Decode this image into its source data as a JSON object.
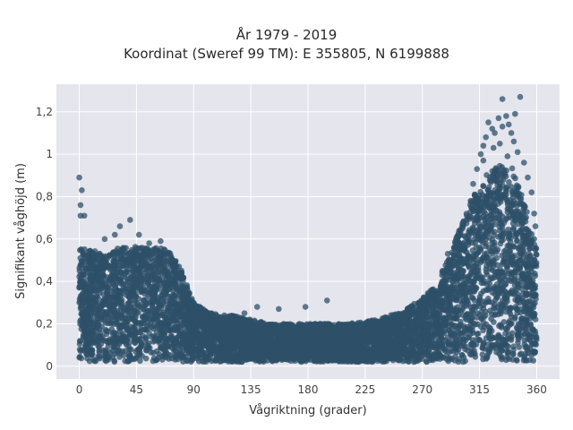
{
  "chart_data": {
    "type": "scatter",
    "title_line1": "År 1979 - 2019",
    "title_line2": "Koordinat (Sweref 99 TM): E 355805, N 6199888",
    "xlabel": "Vågriktning (grader)",
    "ylabel": "Signifikant våghöjd (m)",
    "xlim": [
      -18,
      378
    ],
    "ylim": [
      -0.06,
      1.33
    ],
    "x_ticks": [
      0,
      45,
      90,
      135,
      180,
      225,
      270,
      315,
      360
    ],
    "x_tick_labels": [
      "0",
      "45",
      "90",
      "135",
      "180",
      "225",
      "270",
      "315",
      "360"
    ],
    "y_ticks": [
      0,
      0.2,
      0.4,
      0.6,
      0.8,
      1.0,
      1.2
    ],
    "y_tick_labels": [
      "0",
      "0,2",
      "0,4",
      "0,6",
      "0,8",
      "1",
      "1,2"
    ],
    "grid": true,
    "marker_color": "#2e5068",
    "background_color": "#e5e5ee",
    "envelope": {
      "direction": [
        0,
        10,
        20,
        30,
        40,
        50,
        60,
        70,
        80,
        90,
        100,
        110,
        120,
        135,
        150,
        165,
        180,
        195,
        210,
        225,
        240,
        255,
        270,
        280,
        290,
        300,
        310,
        320,
        330,
        340,
        350,
        360
      ],
      "height_min": [
        0.02,
        0.02,
        0.02,
        0.02,
        0.02,
        0.02,
        0.02,
        0.02,
        0.02,
        0.02,
        0.02,
        0.02,
        0.02,
        0.02,
        0.02,
        0.02,
        0.02,
        0.02,
        0.02,
        0.02,
        0.02,
        0.02,
        0.02,
        0.02,
        0.02,
        0.02,
        0.02,
        0.02,
        0.02,
        0.02,
        0.02,
        0.02
      ],
      "height_max": [
        0.56,
        0.55,
        0.52,
        0.56,
        0.57,
        0.56,
        0.56,
        0.55,
        0.46,
        0.3,
        0.26,
        0.24,
        0.24,
        0.22,
        0.2,
        0.2,
        0.2,
        0.2,
        0.2,
        0.21,
        0.23,
        0.26,
        0.32,
        0.38,
        0.5,
        0.66,
        0.8,
        0.9,
        0.95,
        0.95,
        0.78,
        0.55
      ]
    },
    "outliers": [
      {
        "x": 0,
        "y": 0.89
      },
      {
        "x": 2,
        "y": 0.83
      },
      {
        "x": 1,
        "y": 0.76
      },
      {
        "x": 1,
        "y": 0.71
      },
      {
        "x": 4,
        "y": 0.71
      },
      {
        "x": 32,
        "y": 0.66
      },
      {
        "x": 40,
        "y": 0.69
      },
      {
        "x": 28,
        "y": 0.62
      },
      {
        "x": 47,
        "y": 0.62
      },
      {
        "x": 20,
        "y": 0.6
      },
      {
        "x": 64,
        "y": 0.59
      },
      {
        "x": 55,
        "y": 0.58
      },
      {
        "x": 140,
        "y": 0.28
      },
      {
        "x": 157,
        "y": 0.27
      },
      {
        "x": 178,
        "y": 0.28
      },
      {
        "x": 195,
        "y": 0.31
      },
      {
        "x": 130,
        "y": 0.25
      },
      {
        "x": 215,
        "y": 0.2
      },
      {
        "x": 290,
        "y": 0.53
      },
      {
        "x": 296,
        "y": 0.58
      },
      {
        "x": 300,
        "y": 0.63
      },
      {
        "x": 305,
        "y": 0.71
      },
      {
        "x": 308,
        "y": 0.78
      },
      {
        "x": 310,
        "y": 0.86
      },
      {
        "x": 313,
        "y": 0.93
      },
      {
        "x": 316,
        "y": 1.0
      },
      {
        "x": 318,
        "y": 1.04
      },
      {
        "x": 320,
        "y": 1.08
      },
      {
        "x": 322,
        "y": 1.15
      },
      {
        "x": 325,
        "y": 1.12
      },
      {
        "x": 327,
        "y": 1.1
      },
      {
        "x": 330,
        "y": 1.17
      },
      {
        "x": 333,
        "y": 1.13
      },
      {
        "x": 336,
        "y": 1.18
      },
      {
        "x": 338,
        "y": 1.14
      },
      {
        "x": 340,
        "y": 1.1
      },
      {
        "x": 342,
        "y": 1.06
      },
      {
        "x": 345,
        "y": 1.01
      },
      {
        "x": 333,
        "y": 1.26
      },
      {
        "x": 347,
        "y": 1.27
      },
      {
        "x": 343,
        "y": 1.19
      },
      {
        "x": 350,
        "y": 0.96
      },
      {
        "x": 353,
        "y": 0.89
      },
      {
        "x": 356,
        "y": 0.82
      },
      {
        "x": 358,
        "y": 0.72
      },
      {
        "x": 359,
        "y": 0.66
      },
      {
        "x": 358,
        "y": 0.6
      },
      {
        "x": 326,
        "y": 1.03
      },
      {
        "x": 318,
        "y": 0.97
      },
      {
        "x": 331,
        "y": 1.05
      },
      {
        "x": 337,
        "y": 0.99
      }
    ]
  }
}
